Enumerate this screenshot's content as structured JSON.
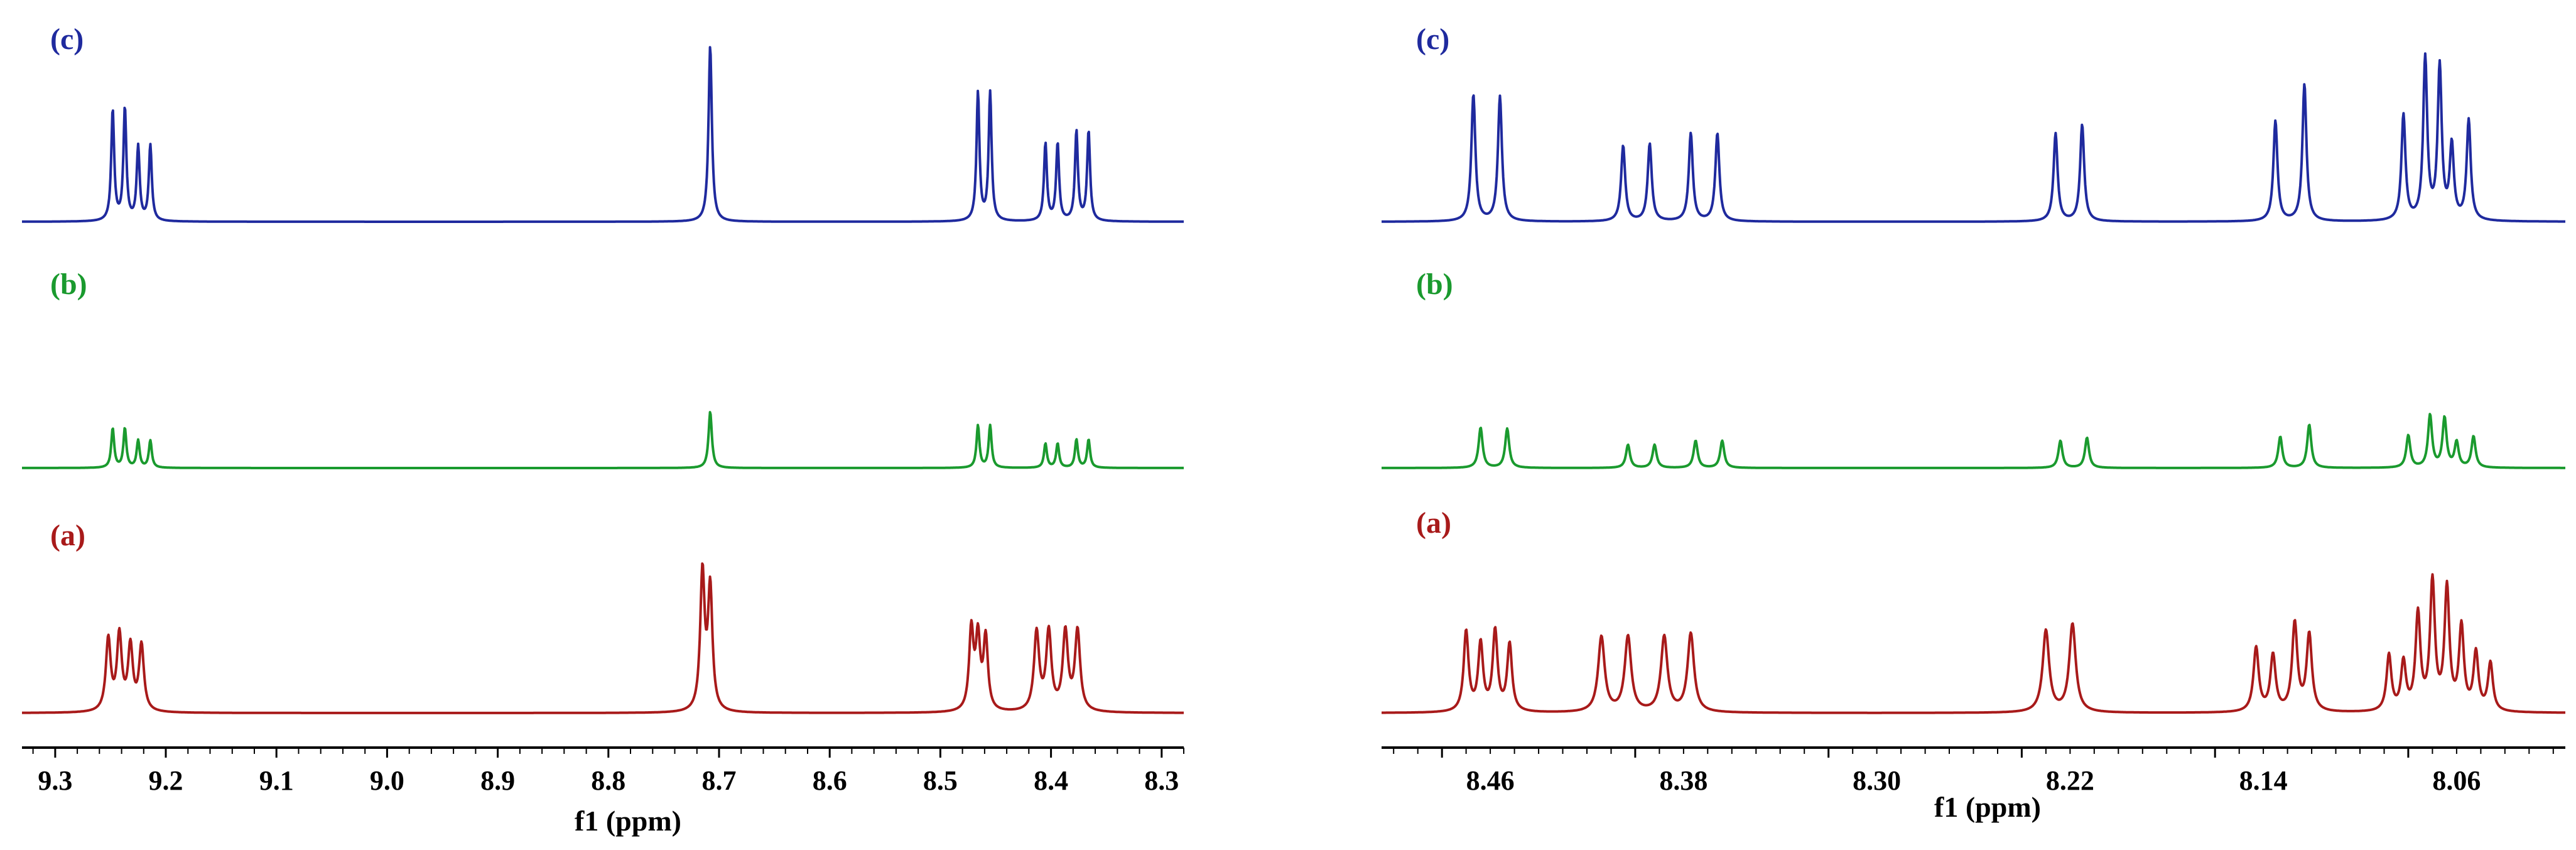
{
  "chart_data": [
    {
      "type": "line",
      "panel": "left",
      "xlabel": "f1 (ppm)",
      "xlim": [
        9.33,
        8.28
      ],
      "x_reversed": true,
      "tick_labels": [
        "9.3",
        "9.2",
        "9.1",
        "9.0",
        "8.9",
        "8.8",
        "8.7",
        "8.6",
        "8.5",
        "8.4",
        "8.3"
      ],
      "series": [
        {
          "name": "(c)",
          "color": "#1f2a9e",
          "peaks": [
            {
              "ppm": 9.248,
              "height": 0.63,
              "width": 0.0016
            },
            {
              "ppm": 9.237,
              "height": 0.64,
              "width": 0.0016
            },
            {
              "ppm": 9.225,
              "height": 0.42,
              "width": 0.0016
            },
            {
              "ppm": 9.214,
              "height": 0.43,
              "width": 0.0016
            },
            {
              "ppm": 8.708,
              "height": 1.0,
              "width": 0.0018
            },
            {
              "ppm": 8.466,
              "height": 0.73,
              "width": 0.0016
            },
            {
              "ppm": 8.455,
              "height": 0.73,
              "width": 0.0016
            },
            {
              "ppm": 8.405,
              "height": 0.44,
              "width": 0.0016
            },
            {
              "ppm": 8.394,
              "height": 0.44,
              "width": 0.0016
            },
            {
              "ppm": 8.377,
              "height": 0.51,
              "width": 0.0016
            },
            {
              "ppm": 8.366,
              "height": 0.51,
              "width": 0.0016
            }
          ]
        },
        {
          "name": "(b)",
          "color": "#1a9a2e",
          "peaks": [
            {
              "ppm": 9.248,
              "height": 0.39,
              "width": 0.0016
            },
            {
              "ppm": 9.237,
              "height": 0.39,
              "width": 0.0016
            },
            {
              "ppm": 9.225,
              "height": 0.27,
              "width": 0.0016
            },
            {
              "ppm": 9.214,
              "height": 0.27,
              "width": 0.0016
            },
            {
              "ppm": 8.708,
              "height": 0.56,
              "width": 0.0018
            },
            {
              "ppm": 8.466,
              "height": 0.42,
              "width": 0.0016
            },
            {
              "ppm": 8.455,
              "height": 0.42,
              "width": 0.0016
            },
            {
              "ppm": 8.405,
              "height": 0.24,
              "width": 0.0016
            },
            {
              "ppm": 8.394,
              "height": 0.24,
              "width": 0.0016
            },
            {
              "ppm": 8.377,
              "height": 0.28,
              "width": 0.0016
            },
            {
              "ppm": 8.366,
              "height": 0.28,
              "width": 0.0016
            }
          ]
        },
        {
          "name": "(a)",
          "color": "#a81a1a",
          "peaks": [
            {
              "ppm": 9.252,
              "height": 0.45,
              "width": 0.0026
            },
            {
              "ppm": 9.242,
              "height": 0.47,
              "width": 0.0026
            },
            {
              "ppm": 9.232,
              "height": 0.4,
              "width": 0.0026
            },
            {
              "ppm": 9.222,
              "height": 0.41,
              "width": 0.0026
            },
            {
              "ppm": 8.715,
              "height": 0.86,
              "width": 0.0024
            },
            {
              "ppm": 8.708,
              "height": 0.76,
              "width": 0.0024
            },
            {
              "ppm": 8.472,
              "height": 0.5,
              "width": 0.0024
            },
            {
              "ppm": 8.466,
              "height": 0.44,
              "width": 0.0024
            },
            {
              "ppm": 8.459,
              "height": 0.45,
              "width": 0.0024
            },
            {
              "ppm": 8.413,
              "height": 0.49,
              "width": 0.0028
            },
            {
              "ppm": 8.402,
              "height": 0.49,
              "width": 0.0028
            },
            {
              "ppm": 8.387,
              "height": 0.49,
              "width": 0.0028
            },
            {
              "ppm": 8.376,
              "height": 0.5,
              "width": 0.0028
            }
          ]
        }
      ]
    },
    {
      "type": "line",
      "panel": "right",
      "xlabel": "f1 (ppm)",
      "xlim": [
        8.505,
        8.015
      ],
      "x_reversed": true,
      "tick_labels": [
        "8.46",
        "8.38",
        "8.30",
        "8.22",
        "8.14",
        "8.06"
      ],
      "series": [
        {
          "name": "(c)",
          "color": "#1f2a9e",
          "peaks": [
            {
              "ppm": 8.467,
              "height": 0.72,
              "width": 0.001
            },
            {
              "ppm": 8.456,
              "height": 0.71,
              "width": 0.001
            },
            {
              "ppm": 8.405,
              "height": 0.43,
              "width": 0.001
            },
            {
              "ppm": 8.394,
              "height": 0.44,
              "width": 0.001
            },
            {
              "ppm": 8.377,
              "height": 0.5,
              "width": 0.001
            },
            {
              "ppm": 8.366,
              "height": 0.5,
              "width": 0.001
            },
            {
              "ppm": 8.226,
              "height": 0.5,
              "width": 0.001
            },
            {
              "ppm": 8.215,
              "height": 0.55,
              "width": 0.001
            },
            {
              "ppm": 8.135,
              "height": 0.57,
              "width": 0.001
            },
            {
              "ppm": 8.123,
              "height": 0.78,
              "width": 0.001
            },
            {
              "ppm": 8.082,
              "height": 0.6,
              "width": 0.001
            },
            {
              "ppm": 8.073,
              "height": 0.92,
              "width": 0.001
            },
            {
              "ppm": 8.067,
              "height": 0.87,
              "width": 0.001
            },
            {
              "ppm": 8.062,
              "height": 0.42,
              "width": 0.001
            },
            {
              "ppm": 8.055,
              "height": 0.57,
              "width": 0.001
            }
          ]
        },
        {
          "name": "(b)",
          "color": "#1a9a2e",
          "peaks": [
            {
              "ppm": 8.464,
              "height": 0.4,
              "width": 0.001
            },
            {
              "ppm": 8.453,
              "height": 0.39,
              "width": 0.001
            },
            {
              "ppm": 8.403,
              "height": 0.23,
              "width": 0.001
            },
            {
              "ppm": 8.392,
              "height": 0.23,
              "width": 0.001
            },
            {
              "ppm": 8.375,
              "height": 0.27,
              "width": 0.001
            },
            {
              "ppm": 8.364,
              "height": 0.27,
              "width": 0.001
            },
            {
              "ppm": 8.224,
              "height": 0.27,
              "width": 0.001
            },
            {
              "ppm": 8.213,
              "height": 0.3,
              "width": 0.001
            },
            {
              "ppm": 8.133,
              "height": 0.31,
              "width": 0.001
            },
            {
              "ppm": 8.121,
              "height": 0.43,
              "width": 0.001
            },
            {
              "ppm": 8.08,
              "height": 0.32,
              "width": 0.001
            },
            {
              "ppm": 8.071,
              "height": 0.52,
              "width": 0.001
            },
            {
              "ppm": 8.065,
              "height": 0.49,
              "width": 0.001
            },
            {
              "ppm": 8.06,
              "height": 0.25,
              "width": 0.001
            },
            {
              "ppm": 8.053,
              "height": 0.31,
              "width": 0.001
            }
          ]
        },
        {
          "name": "(a)",
          "color": "#a81a1a",
          "peaks": [
            {
              "ppm": 8.47,
              "height": 0.5,
              "width": 0.0012
            },
            {
              "ppm": 8.464,
              "height": 0.42,
              "width": 0.0012
            },
            {
              "ppm": 8.458,
              "height": 0.5,
              "width": 0.0012
            },
            {
              "ppm": 8.452,
              "height": 0.42,
              "width": 0.0012
            },
            {
              "ppm": 8.414,
              "height": 0.47,
              "width": 0.0016
            },
            {
              "ppm": 8.403,
              "height": 0.47,
              "width": 0.0016
            },
            {
              "ppm": 8.388,
              "height": 0.47,
              "width": 0.0016
            },
            {
              "ppm": 8.377,
              "height": 0.49,
              "width": 0.0016
            },
            {
              "ppm": 8.23,
              "height": 0.51,
              "width": 0.0016
            },
            {
              "ppm": 8.219,
              "height": 0.55,
              "width": 0.0016
            },
            {
              "ppm": 8.143,
              "height": 0.4,
              "width": 0.0013
            },
            {
              "ppm": 8.136,
              "height": 0.35,
              "width": 0.0013
            },
            {
              "ppm": 8.127,
              "height": 0.55,
              "width": 0.0013
            },
            {
              "ppm": 8.121,
              "height": 0.48,
              "width": 0.0013
            },
            {
              "ppm": 8.088,
              "height": 0.35,
              "width": 0.0012
            },
            {
              "ppm": 8.082,
              "height": 0.3,
              "width": 0.0012
            },
            {
              "ppm": 8.076,
              "height": 0.6,
              "width": 0.0012
            },
            {
              "ppm": 8.07,
              "height": 0.8,
              "width": 0.0012
            },
            {
              "ppm": 8.064,
              "height": 0.76,
              "width": 0.0012
            },
            {
              "ppm": 8.058,
              "height": 0.52,
              "width": 0.0012
            },
            {
              "ppm": 8.052,
              "height": 0.36,
              "width": 0.0012
            },
            {
              "ppm": 8.046,
              "height": 0.3,
              "width": 0.0012
            }
          ]
        }
      ]
    }
  ]
}
